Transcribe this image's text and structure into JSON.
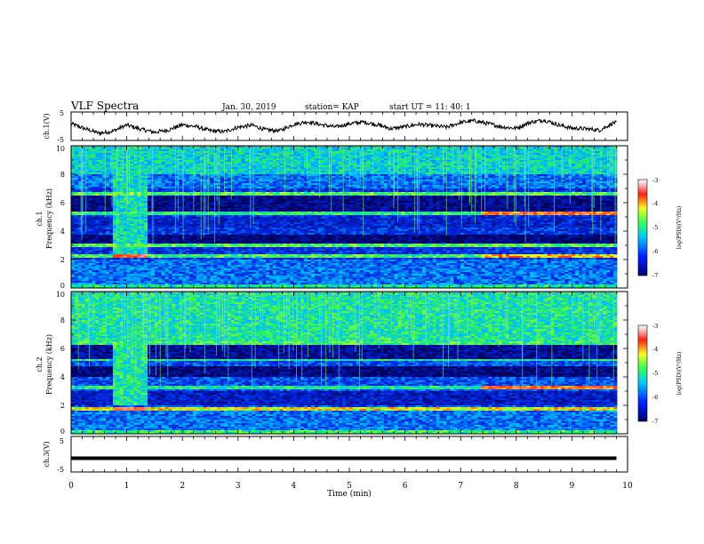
{
  "header": {
    "title": "VLF Spectra",
    "date": "Jan. 30, 2019",
    "station": "station= KAP",
    "start": "start  UT  =   11: 40: 1"
  },
  "chart_data": [
    {
      "type": "line",
      "name": "ch1-waveform",
      "ylabel": "ch.1(V)",
      "ylim": [
        -5,
        5
      ],
      "ytick_labels": [
        "5",
        "-5"
      ],
      "xlim": [
        0,
        10
      ],
      "x": [
        0,
        0.25,
        0.5,
        0.75,
        1,
        1.25,
        1.5,
        1.75,
        2,
        2.25,
        2.5,
        2.75,
        3,
        3.25,
        3.5,
        3.75,
        4,
        4.25,
        4.5,
        4.75,
        5,
        5.25,
        5.5,
        5.75,
        6,
        6.25,
        6.5,
        6.75,
        7,
        7.25,
        7.5,
        7.75,
        8,
        8.25,
        8.5,
        8.75,
        9,
        9.25,
        9.5,
        9.75
      ],
      "y": [
        1.0,
        -1.0,
        -2.8,
        -2.0,
        0.5,
        -1.2,
        -2.4,
        -1.5,
        0.6,
        -0.2,
        -1.8,
        -2.2,
        -0.4,
        0.4,
        -1.5,
        -1.8,
        0.8,
        1.8,
        0.6,
        -0.3,
        1.0,
        1.7,
        0.6,
        -1.0,
        -0.2,
        0.8,
        0.2,
        -0.4,
        1.5,
        2.2,
        1.0,
        -0.3,
        -0.8,
        1.6,
        2.5,
        0.6,
        -0.8,
        -1.0,
        -1.6,
        1.4
      ]
    },
    {
      "type": "heatmap",
      "name": "ch1-spectrogram",
      "ylabel": "ch.1",
      "ylabel2": "Frequency (kHz)",
      "xlim": [
        0,
        10
      ],
      "ylim": [
        0,
        10
      ],
      "ytick_labels": [
        "0",
        "2",
        "4",
        "6",
        "8",
        "10"
      ],
      "colorbar": {
        "label": "log(PSD)(V²/Hz)",
        "range": [
          -7,
          -3
        ],
        "tick_labels": [
          "-3",
          "-4",
          "-5",
          "-6",
          "-7"
        ]
      }
    },
    {
      "type": "heatmap",
      "name": "ch2-spectrogram",
      "ylabel": "ch.2",
      "ylabel2": "Frequency (kHz)",
      "xlim": [
        0,
        10
      ],
      "ylim": [
        0,
        10
      ],
      "ytick_labels": [
        "0",
        "2",
        "4",
        "6",
        "8",
        "10"
      ],
      "colorbar": {
        "label": "log(PSD)(V²/Hz)",
        "range": [
          -7,
          -3
        ],
        "tick_labels": [
          "-3",
          "-4",
          "-5",
          "-6",
          "-7"
        ]
      }
    },
    {
      "type": "line",
      "name": "ch3-waveform",
      "ylabel": "ch.3(V)",
      "ylim": [
        -5,
        5
      ],
      "ytick_labels": [
        "5",
        "-5"
      ],
      "xlim": [
        0,
        9.8
      ],
      "x": [
        0,
        9.8
      ],
      "y": [
        -1.4,
        -1.4
      ]
    }
  ],
  "x_axis": {
    "label": "Time  (min)",
    "range": [
      0,
      10
    ],
    "tick_labels": [
      "0",
      "1",
      "2",
      "3",
      "4",
      "5",
      "6",
      "7",
      "8",
      "9",
      "10"
    ]
  },
  "colors": {
    "background_low": "#00007a",
    "mid": "#1e66ff",
    "high": "#29f064",
    "peak": "#ff2a1a"
  }
}
